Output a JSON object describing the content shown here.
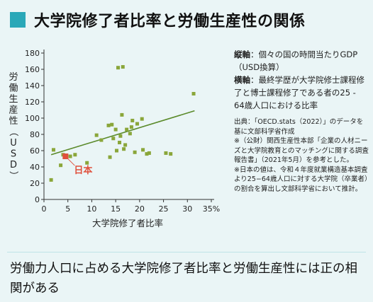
{
  "title": "大学院修了者比率と労働生産性の関係",
  "notes": {
    "vertical_label": "縦軸",
    "vertical_text": "：個々の国の時間当たりGDP（USD換算）",
    "horizontal_label": "横軸",
    "horizontal_text": "：最終学歴が大学院修士課程修了と博士課程修了である者の25 - 64歳人口における比率",
    "source": "出典：「OECD.stats（2022）」のデータを基に文部科学省作成",
    "note1": "※（公財）関西生産性本部「企業の人材ニーズと大学院教育とのマッチングに関する調査報告書」（2021年5月）を参考とした。",
    "note2": "※日本の値は、令和４年度就業構造基本調査より25−64歳人口に対する大学院（卒業者）の割合を算出し文部科学省において推計。"
  },
  "conclusion": "労働力人口に占める大学院修了者比率と労働生産性には正の相関がある",
  "colors": {
    "background": "#eaf5f6",
    "accent": "#2aa8b8",
    "points": "#8aa63a",
    "trendline": "#5a8a2a",
    "japan": "#e0503c"
  },
  "chart_data": {
    "type": "scatter",
    "xlabel": "大学院修了者比率",
    "ylabel": "労働生産性（USD）",
    "xlim": [
      0,
      35
    ],
    "ylim": [
      0,
      180
    ],
    "x_ticks": [
      "0",
      "5",
      "10",
      "15",
      "20",
      "25",
      "30",
      "35%"
    ],
    "y_ticks": [
      "0",
      "20",
      "40",
      "60",
      "80",
      "100",
      "120",
      "140",
      "160",
      "180"
    ],
    "points": [
      {
        "x": 1.5,
        "y": 24
      },
      {
        "x": 2.0,
        "y": 61
      },
      {
        "x": 3.5,
        "y": 42
      },
      {
        "x": 4.0,
        "y": 55
      },
      {
        "x": 5.5,
        "y": 53
      },
      {
        "x": 6.5,
        "y": 55
      },
      {
        "x": 9.0,
        "y": 45
      },
      {
        "x": 11.0,
        "y": 79
      },
      {
        "x": 12.0,
        "y": 73
      },
      {
        "x": 13.5,
        "y": 91
      },
      {
        "x": 13.8,
        "y": 52
      },
      {
        "x": 14.2,
        "y": 92
      },
      {
        "x": 14.5,
        "y": 75
      },
      {
        "x": 15.0,
        "y": 86
      },
      {
        "x": 15.2,
        "y": 60
      },
      {
        "x": 15.5,
        "y": 162
      },
      {
        "x": 15.8,
        "y": 70
      },
      {
        "x": 16.0,
        "y": 78
      },
      {
        "x": 16.3,
        "y": 104
      },
      {
        "x": 16.5,
        "y": 163
      },
      {
        "x": 16.7,
        "y": 62
      },
      {
        "x": 17.0,
        "y": 67
      },
      {
        "x": 17.3,
        "y": 86
      },
      {
        "x": 18.0,
        "y": 81
      },
      {
        "x": 18.3,
        "y": 89
      },
      {
        "x": 18.5,
        "y": 97
      },
      {
        "x": 19.0,
        "y": 58
      },
      {
        "x": 19.5,
        "y": 93
      },
      {
        "x": 20.5,
        "y": 99
      },
      {
        "x": 20.7,
        "y": 61
      },
      {
        "x": 21.5,
        "y": 56
      },
      {
        "x": 22.0,
        "y": 57
      },
      {
        "x": 25.5,
        "y": 57
      },
      {
        "x": 26.5,
        "y": 56
      },
      {
        "x": 31.3,
        "y": 130
      }
    ],
    "japan": {
      "label": "日本",
      "x": 4.5,
      "y": 53
    },
    "trendline": {
      "x1": 1.5,
      "y1": 55,
      "x2": 31.5,
      "y2": 109
    }
  }
}
